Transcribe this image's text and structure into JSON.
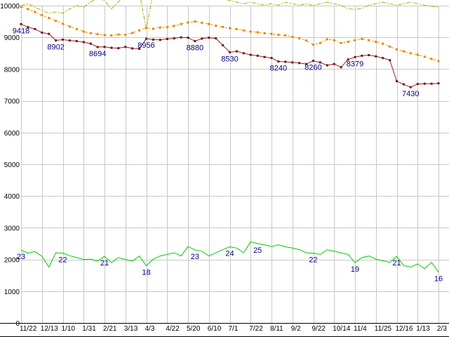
{
  "chart_data": {
    "type": "line",
    "title": "",
    "xlabel": "",
    "ylabel": "",
    "ylim": [
      0,
      10000
    ],
    "grid": true,
    "legend": "none",
    "grid_color": "#c8c8c8",
    "axis_color": "#000000",
    "axis_text_color": "#000000",
    "point_label_color": "#000080",
    "background": "#ffffff",
    "y_ticks": [
      0,
      1000,
      2000,
      3000,
      4000,
      5000,
      6000,
      7000,
      8000,
      9000,
      10000
    ],
    "y_tick_labels": [
      "0",
      "1000",
      "2000",
      "3000",
      "4000",
      "5000",
      "6000",
      "7000",
      "8000",
      "9000",
      "10000"
    ],
    "x_tick_every": 3,
    "x_tick_labels": [
      "11/22",
      "12/13",
      "1/10",
      "1/31",
      "2/21",
      "3/13",
      "4/3",
      "4/22",
      "5/20",
      "6/10",
      "7/1",
      "7/22",
      "8/11",
      "9/2",
      "9/22",
      "10/14",
      "11/4",
      "11/25",
      "12/16",
      "1/13",
      "2/3"
    ],
    "series": [
      {
        "id": "olive-dashdot-line",
        "color": "#aaaa00",
        "style": "dash-dot",
        "marker": "none",
        "values": [
          10000,
          10060,
          9950,
          9850,
          9760,
          9800,
          9760,
          9900,
          10000,
          9950,
          10120,
          10220,
          10150,
          9900,
          10120,
          10300,
          10260,
          10420,
          9260,
          10420,
          10520,
          10420,
          10620,
          10520,
          10700,
          10620,
          10520,
          10420,
          10320,
          10220,
          10160,
          10110,
          10060,
          10110,
          10060,
          10010,
          10060,
          10010,
          10110,
          10060,
          10010,
          10060,
          10000,
          10060,
          10110,
          10060,
          10010,
          9900,
          9880,
          9910,
          10010,
          10060,
          10110,
          10060,
          10010,
          10060,
          10110,
          10060,
          10010,
          9980,
          9950
        ]
      },
      {
        "id": "orange-dashed-line",
        "color": "#ff9900",
        "marker_color": "#dd8800",
        "style": "dashed",
        "marker": "square",
        "values": [
          9960,
          9890,
          9800,
          9700,
          9610,
          9520,
          9430,
          9340,
          9260,
          9180,
          9130,
          9100,
          9070,
          9060,
          9090,
          9080,
          9140,
          9220,
          9300,
          9270,
          9310,
          9320,
          9360,
          9420,
          9470,
          9500,
          9460,
          9420,
          9370,
          9330,
          9290,
          9260,
          9220,
          9180,
          9160,
          9130,
          9110,
          9080,
          9060,
          9020,
          8970,
          8900,
          8770,
          8820,
          8940,
          8910,
          8820,
          8860,
          8910,
          8950,
          8910,
          8860,
          8800,
          8710,
          8620,
          8560,
          8500,
          8450,
          8390,
          8320,
          8250
        ]
      },
      {
        "id": "red-solid-line",
        "color": "#992222",
        "marker_color": "#701414",
        "style": "solid",
        "marker": "square",
        "values": [
          9418,
          9320,
          9260,
          9150,
          9110,
          8902,
          8930,
          8900,
          8880,
          8850,
          8800,
          8694,
          8700,
          8670,
          8660,
          8700,
          8650,
          8640,
          8956,
          8930,
          8920,
          8950,
          8970,
          9000,
          8990,
          8880,
          8960,
          8990,
          8970,
          8750,
          8530,
          8560,
          8500,
          8450,
          8420,
          8380,
          8350,
          8240,
          8230,
          8210,
          8190,
          8160,
          8260,
          8210,
          8120,
          8160,
          8060,
          8300,
          8379,
          8420,
          8440,
          8400,
          8350,
          8280,
          7620,
          7520,
          7430,
          7530,
          7540,
          7540,
          7550
        ]
      },
      {
        "id": "green-solid-line",
        "color": "#00cc00",
        "style": "solid",
        "marker": "none",
        "values": [
          2300,
          2200,
          2250,
          2100,
          1760,
          2210,
          2200,
          2120,
          2060,
          2000,
          2010,
          1950,
          2100,
          1900,
          2060,
          2000,
          1950,
          2110,
          1800,
          2010,
          2110,
          2160,
          2210,
          2110,
          2410,
          2300,
          2260,
          2110,
          2210,
          2310,
          2400,
          2360,
          2210,
          2560,
          2500,
          2460,
          2410,
          2460,
          2400,
          2360,
          2310,
          2210,
          2200,
          2160,
          2310,
          2260,
          2210,
          2160,
          1900,
          2060,
          2110,
          2010,
          1960,
          1910,
          2100,
          1810,
          1760,
          1860,
          1710,
          1910,
          1600
        ]
      }
    ],
    "point_labels": [
      {
        "series": "red-solid-line",
        "index": 0,
        "text": "9418"
      },
      {
        "series": "red-solid-line",
        "index": 5,
        "text": "8902"
      },
      {
        "series": "red-solid-line",
        "index": 11,
        "text": "8694"
      },
      {
        "series": "red-solid-line",
        "index": 18,
        "text": "8956"
      },
      {
        "series": "red-solid-line",
        "index": 25,
        "text": "8880"
      },
      {
        "series": "red-solid-line",
        "index": 30,
        "text": "8530"
      },
      {
        "series": "red-solid-line",
        "index": 37,
        "text": "8240"
      },
      {
        "series": "red-solid-line",
        "index": 42,
        "text": "8260"
      },
      {
        "series": "red-solid-line",
        "index": 48,
        "text": "8379"
      },
      {
        "series": "red-solid-line",
        "index": 56,
        "text": "7430"
      },
      {
        "series": "green-solid-line",
        "index": 0,
        "text": "23"
      },
      {
        "series": "green-solid-line",
        "index": 6,
        "text": "22"
      },
      {
        "series": "green-solid-line",
        "index": 12,
        "text": "21"
      },
      {
        "series": "green-solid-line",
        "index": 18,
        "text": "18"
      },
      {
        "series": "green-solid-line",
        "index": 25,
        "text": "23"
      },
      {
        "series": "green-solid-line",
        "index": 30,
        "text": "24"
      },
      {
        "series": "green-solid-line",
        "index": 34,
        "text": "25"
      },
      {
        "series": "green-solid-line",
        "index": 42,
        "text": "22"
      },
      {
        "series": "green-solid-line",
        "index": 48,
        "text": "19"
      },
      {
        "series": "green-solid-line",
        "index": 54,
        "text": "21"
      },
      {
        "series": "green-solid-line",
        "index": 60,
        "text": "16"
      }
    ]
  }
}
